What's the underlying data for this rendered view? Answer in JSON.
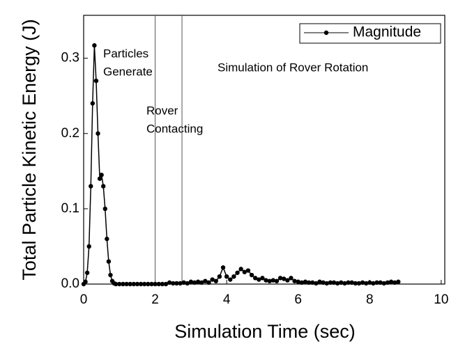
{
  "chart_data": {
    "type": "line",
    "xlabel": "Simulation Time (sec)",
    "ylabel": "Total Particle Kinetic Energy (J)",
    "annotations": [
      [
        "Particles",
        "Generate"
      ],
      [
        "Rover",
        "Contacting"
      ],
      [
        "Simulation of Rover Rotation"
      ]
    ],
    "vlines": [
      2,
      2.75
    ],
    "x": [
      0,
      0.05,
      0.1,
      0.15,
      0.2,
      0.25,
      0.3,
      0.35,
      0.4,
      0.45,
      0.5,
      0.55,
      0.6,
      0.65,
      0.7,
      0.75,
      0.8,
      0.85,
      0.9,
      1.0,
      1.1,
      1.2,
      1.3,
      1.4,
      1.5,
      1.6,
      1.7,
      1.8,
      1.9,
      2.0,
      2.1,
      2.2,
      2.3,
      2.4,
      2.5,
      2.6,
      2.7,
      2.8,
      2.9,
      3.0,
      3.1,
      3.2,
      3.3,
      3.4,
      3.5,
      3.6,
      3.7,
      3.8,
      3.9,
      4.0,
      4.1,
      4.2,
      4.3,
      4.4,
      4.5,
      4.6,
      4.7,
      4.8,
      4.9,
      5.0,
      5.1,
      5.2,
      5.3,
      5.4,
      5.5,
      5.6,
      5.7,
      5.8,
      5.9,
      6.0,
      6.1,
      6.2,
      6.3,
      6.4,
      6.5,
      6.6,
      6.7,
      6.8,
      6.9,
      7.0,
      7.1,
      7.2,
      7.3,
      7.4,
      7.5,
      7.6,
      7.7,
      7.8,
      7.9,
      8.0,
      8.1,
      8.2,
      8.3,
      8.4,
      8.5,
      8.6,
      8.7,
      8.8
    ],
    "series": [
      {
        "name": "Magnitude",
        "color": "#000000",
        "values": [
          0,
          0.003,
          0.015,
          0.05,
          0.13,
          0.24,
          0.317,
          0.27,
          0.2,
          0.14,
          0.145,
          0.13,
          0.1,
          0.06,
          0.03,
          0.012,
          0.004,
          0.001,
          0,
          0,
          0,
          0,
          0,
          0,
          0,
          0,
          0,
          0,
          0,
          0,
          0,
          0,
          0,
          0.002,
          0.001,
          0.001,
          0.001,
          0.002,
          0.001,
          0.003,
          0.002,
          0.003,
          0.002,
          0.004,
          0.002,
          0.006,
          0.004,
          0.01,
          0.022,
          0.01,
          0.006,
          0.01,
          0.015,
          0.02,
          0.016,
          0.018,
          0.012,
          0.008,
          0.006,
          0.008,
          0.005,
          0.004,
          0.005,
          0.004,
          0.008,
          0.007,
          0.005,
          0.008,
          0.004,
          0.003,
          0.002,
          0.003,
          0.002,
          0.002,
          0.001,
          0.003,
          0.002,
          0.001,
          0.002,
          0.002,
          0.001,
          0.002,
          0.001,
          0.002,
          0.002,
          0.001,
          0.001,
          0.002,
          0.001,
          0.002,
          0.001,
          0.002,
          0.002,
          0.001,
          0.002,
          0.003,
          0.002,
          0.003
        ]
      }
    ],
    "xlim": [
      0,
      10.1
    ],
    "xticks": [
      0,
      2,
      4,
      6,
      8,
      10
    ],
    "ylim": [
      0,
      0.357
    ],
    "yticks": [
      {
        "value": 0,
        "label": "0.0"
      },
      {
        "value": 0.1,
        "label": "0.1"
      },
      {
        "value": 0.2,
        "label": "0.2"
      },
      {
        "value": 0.3,
        "label": "0.3"
      }
    ],
    "legend": "top-right"
  }
}
